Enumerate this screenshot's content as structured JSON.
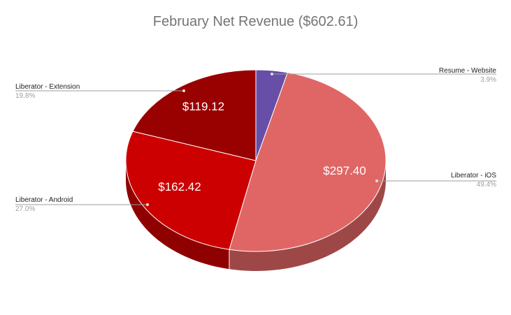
{
  "chart_data": {
    "type": "pie",
    "style": "3d",
    "title": "February Net Revenue ($602.61)",
    "legend": "callout labels",
    "slices": [
      {
        "name": "Liberator - iOS",
        "value": 297.4,
        "value_label": "$297.40",
        "percent_label": "49.4%",
        "color": "#e06666",
        "side_color": "#9e4747",
        "show_value": true
      },
      {
        "name": "Liberator - Android",
        "value": 162.42,
        "value_label": "$162.42",
        "percent_label": "27.0%",
        "color": "#cc0000",
        "side_color": "#8f0000",
        "show_value": true
      },
      {
        "name": "Liberator - Extension",
        "value": 119.12,
        "value_label": "$119.12",
        "percent_label": "19.8%",
        "color": "#990000",
        "side_color": "#6b0000",
        "show_value": true
      },
      {
        "name": "Resume - Website",
        "value": 23.67,
        "value_label": "$23.67",
        "percent_label": "3.9%",
        "color": "#674ea7",
        "side_color": "#483675",
        "show_value": false
      }
    ]
  }
}
